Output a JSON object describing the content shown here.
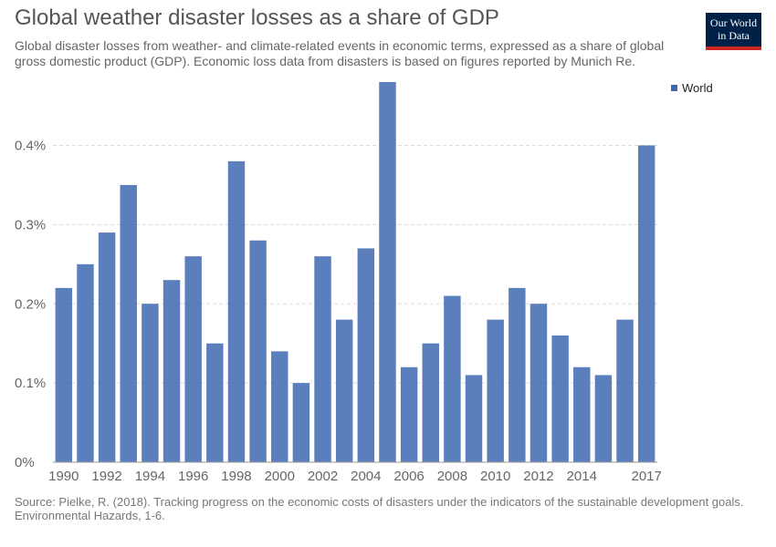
{
  "logo": {
    "line1": "Our World",
    "line2": "in Data"
  },
  "source": "Source: Pielke, R. (2018). Tracking progress on the economic costs of disasters under the indicators of the sustainable development goals. Environmental Hazards, 1-6.",
  "colors": {
    "bar": "#3e67b0",
    "logo_bg": "#002147",
    "logo_accent": "#ce261e"
  },
  "chart_data": {
    "type": "bar",
    "title": "Global weather disaster losses as a share of GDP",
    "subtitle": "Global disaster losses from weather- and climate-related events in economic terms, expressed as a share of global gross domestic product (GDP). Economic loss data from disasters is based on figures reported by Munich Re.",
    "categories": [
      "1990",
      "1991",
      "1992",
      "1993",
      "1994",
      "1995",
      "1996",
      "1997",
      "1998",
      "1999",
      "2000",
      "2001",
      "2002",
      "2003",
      "2004",
      "2005",
      "2006",
      "2007",
      "2008",
      "2009",
      "2010",
      "2011",
      "2012",
      "2013",
      "2014",
      "2015",
      "2016",
      "2017"
    ],
    "series": [
      {
        "name": "World",
        "values": [
          0.22,
          0.25,
          0.29,
          0.35,
          0.2,
          0.23,
          0.26,
          0.15,
          0.38,
          0.28,
          0.14,
          0.1,
          0.26,
          0.18,
          0.27,
          0.48,
          0.12,
          0.15,
          0.21,
          0.11,
          0.18,
          0.22,
          0.2,
          0.16,
          0.12,
          0.11,
          0.18,
          0.4
        ]
      }
    ],
    "x_tick_labels": [
      "1990",
      "1992",
      "1994",
      "1996",
      "1998",
      "2000",
      "2002",
      "2004",
      "2006",
      "2008",
      "2010",
      "2012",
      "2014",
      "2017"
    ],
    "y_ticks": [
      0,
      0.1,
      0.2,
      0.3,
      0.4
    ],
    "y_tick_labels": [
      "0%",
      "0.1%",
      "0.2%",
      "0.3%",
      "0.4%"
    ],
    "ylim": [
      0,
      0.48
    ],
    "grid": true,
    "legend_position": "top-right"
  }
}
